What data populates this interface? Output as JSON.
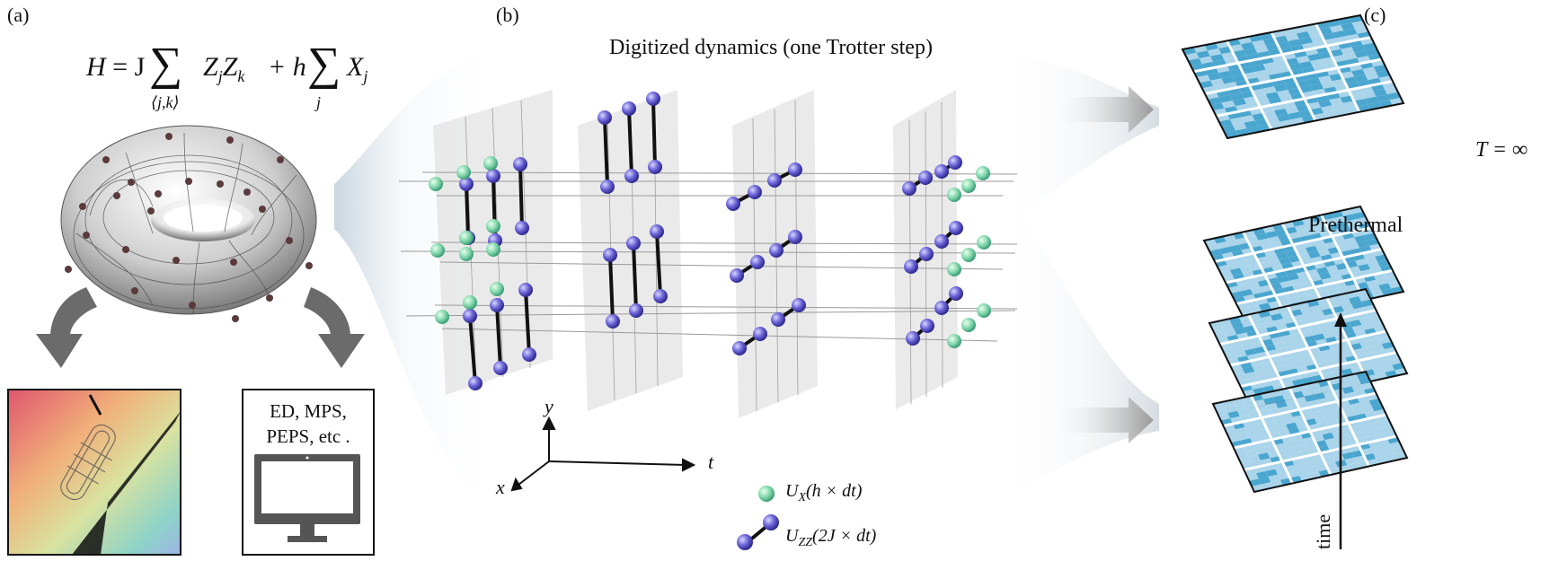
{
  "panels": {
    "a": "(a)",
    "b": "(b)",
    "c": "(c)"
  },
  "hamiltonian": {
    "H": "H",
    "eq": "= J",
    "sum1": "∑",
    "sub1": "⟨j,k⟩",
    "term1": "Z",
    "term1_sub_j": "j",
    "term1b": "Z",
    "term1_sub_k": "k",
    "plus": "+ h",
    "sum2": "∑",
    "sub2": "j",
    "term2": "X",
    "term2_sub": "j"
  },
  "title_b": "Digitized dynamics (one Trotter step)",
  "methods_box": {
    "line1": "ED, MPS,",
    "line2": "PEPS, etc ."
  },
  "legend": {
    "ux": "U",
    "ux_sub": "X",
    "ux_arg": "(h × dt)",
    "uzz": "U",
    "uzz_sub": "ZZ",
    "uzz_arg": "(2J × dt)"
  },
  "axes": {
    "x": "x",
    "y": "y",
    "t": "t"
  },
  "right": {
    "t_inf": "T = ∞",
    "prethermal": "Prethermal",
    "time": "time"
  },
  "colors": {
    "green_ball": "#7fd6a8",
    "purple_ball": "#6a63d6",
    "lattice_fill": "#4aa6cf",
    "lattice_light": "#a9d4ea",
    "grey_arrow": "#6b6b6b"
  }
}
